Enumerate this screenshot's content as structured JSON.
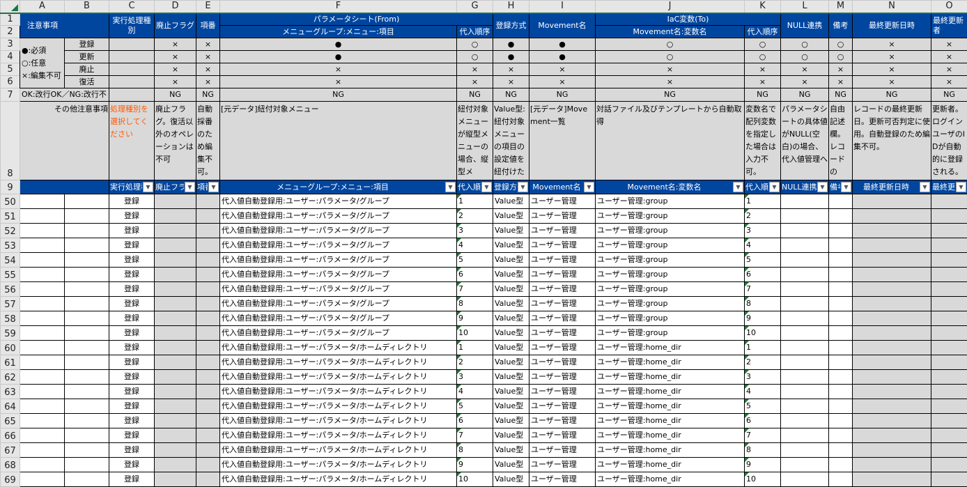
{
  "column_letters": [
    "A",
    "B",
    "C",
    "D",
    "E",
    "F",
    "G",
    "H",
    "I",
    "J",
    "K",
    "L",
    "M",
    "N",
    "O"
  ],
  "header": {
    "notes": "注意事項",
    "exec_type": "実行処理種別",
    "discard_flag": "廃止フラグ",
    "item_no": "項番",
    "param_sheet": "パラメータシート(From)",
    "menu_item": "メニューグループ:メニュー:項目",
    "assign_order": "代入順序",
    "reg_method": "登録方式",
    "movement": "Movement名",
    "iac": "IaC変数(To)",
    "movement_var": "Movement名:変数名",
    "assign_order2": "代入順序",
    "null_link": "NULL連携",
    "remarks": "備考",
    "last_updated": "最終更新日時",
    "last_updater": "最終更新者"
  },
  "legend": {
    "required": "●:必須",
    "optional": "○:任意",
    "readonly": "×:編集不可",
    "newline": "OK:改行OK／NG:改行不",
    "other": "その他注意事項"
  },
  "ops": [
    {
      "row": "3",
      "label": "登録",
      "symbols": [
        "×",
        "×",
        "●",
        "○",
        "●",
        "●",
        "○",
        "○",
        "○",
        "○",
        "×",
        "×"
      ]
    },
    {
      "row": "4",
      "label": "更新",
      "symbols": [
        "×",
        "×",
        "●",
        "○",
        "●",
        "●",
        "○",
        "○",
        "○",
        "○",
        "×",
        "×"
      ]
    },
    {
      "row": "5",
      "label": "廃止",
      "symbols": [
        "×",
        "×",
        "×",
        "×",
        "×",
        "×",
        "×",
        "×",
        "×",
        "×",
        "×",
        "×"
      ]
    },
    {
      "row": "6",
      "label": "復活",
      "symbols": [
        "×",
        "×",
        "×",
        "×",
        "×",
        "×",
        "×",
        "×",
        "×",
        "×",
        "×",
        "×"
      ]
    }
  ],
  "newline_row": [
    "NG",
    "NG",
    "NG",
    "NG",
    "NG",
    "NG",
    "NG",
    "NG",
    "NG",
    "NG",
    "NG",
    "NG"
  ],
  "descriptions": {
    "C": "処理種別を選択してください",
    "D": "廃止フラグ。復活以外のオペレーションは不可",
    "E": "自動採番のため編集不可。",
    "F": "[元データ]紐付対象メニュー",
    "G": "紐付対象メニューが縦型メニューの場合、縦型メ",
    "H": "Value型:紐付対象メニューの項目の設定値を紐付けた",
    "I": "[元データ]Movement一覧",
    "J": "対話ファイル及びテンプレートから自動取得",
    "K": "変数名で配列変数を指定した場合は入力不可。",
    "L": "パラメータシートの具体値がNULL(空白)の場合、代入値管理へ",
    "M": "自由記述欄。レコードの",
    "N": "レコードの最終更新日。更新可否判定に使用。自動登録のため編集不可。",
    "O": "更新者。ログインユーザのIDが自動的に登録される。編集不可。"
  },
  "filter_headers": [
    "実行処理種別",
    "廃止フラグ",
    "項番",
    "メニューグループ:メニュー:項目",
    "代入順序",
    "登録方式",
    "Movement名",
    "Movement名:変数名",
    "代入順序",
    "NULL連携",
    "備考",
    "最終更新日時",
    "最終更新者"
  ],
  "rows": [
    {
      "n": "50",
      "op": "登録",
      "item": "代入値自動登録用:ユーザー:パラメータ/グループ",
      "order": "1",
      "method": "Value型",
      "movement": "ユーザー管理",
      "var": "ユーザー管理:group",
      "order2": "1"
    },
    {
      "n": "51",
      "op": "登録",
      "item": "代入値自動登録用:ユーザー:パラメータ/グループ",
      "order": "2",
      "method": "Value型",
      "movement": "ユーザー管理",
      "var": "ユーザー管理:group",
      "order2": "2"
    },
    {
      "n": "52",
      "op": "登録",
      "item": "代入値自動登録用:ユーザー:パラメータ/グループ",
      "order": "3",
      "method": "Value型",
      "movement": "ユーザー管理",
      "var": "ユーザー管理:group",
      "order2": "3"
    },
    {
      "n": "53",
      "op": "登録",
      "item": "代入値自動登録用:ユーザー:パラメータ/グループ",
      "order": "4",
      "method": "Value型",
      "movement": "ユーザー管理",
      "var": "ユーザー管理:group",
      "order2": "4"
    },
    {
      "n": "54",
      "op": "登録",
      "item": "代入値自動登録用:ユーザー:パラメータ/グループ",
      "order": "5",
      "method": "Value型",
      "movement": "ユーザー管理",
      "var": "ユーザー管理:group",
      "order2": "5"
    },
    {
      "n": "55",
      "op": "登録",
      "item": "代入値自動登録用:ユーザー:パラメータ/グループ",
      "order": "6",
      "method": "Value型",
      "movement": "ユーザー管理",
      "var": "ユーザー管理:group",
      "order2": "6"
    },
    {
      "n": "56",
      "op": "登録",
      "item": "代入値自動登録用:ユーザー:パラメータ/グループ",
      "order": "7",
      "method": "Value型",
      "movement": "ユーザー管理",
      "var": "ユーザー管理:group",
      "order2": "7"
    },
    {
      "n": "57",
      "op": "登録",
      "item": "代入値自動登録用:ユーザー:パラメータ/グループ",
      "order": "8",
      "method": "Value型",
      "movement": "ユーザー管理",
      "var": "ユーザー管理:group",
      "order2": "8"
    },
    {
      "n": "58",
      "op": "登録",
      "item": "代入値自動登録用:ユーザー:パラメータ/グループ",
      "order": "9",
      "method": "Value型",
      "movement": "ユーザー管理",
      "var": "ユーザー管理:group",
      "order2": "9"
    },
    {
      "n": "59",
      "op": "登録",
      "item": "代入値自動登録用:ユーザー:パラメータ/グループ",
      "order": "10",
      "method": "Value型",
      "movement": "ユーザー管理",
      "var": "ユーザー管理:group",
      "order2": "10"
    },
    {
      "n": "60",
      "op": "登録",
      "item": "代入値自動登録用:ユーザー:パラメータ/ホームディレクトリ",
      "order": "1",
      "method": "Value型",
      "movement": "ユーザー管理",
      "var": "ユーザー管理:home_dir",
      "order2": "1"
    },
    {
      "n": "61",
      "op": "登録",
      "item": "代入値自動登録用:ユーザー:パラメータ/ホームディレクトリ",
      "order": "2",
      "method": "Value型",
      "movement": "ユーザー管理",
      "var": "ユーザー管理:home_dir",
      "order2": "2"
    },
    {
      "n": "62",
      "op": "登録",
      "item": "代入値自動登録用:ユーザー:パラメータ/ホームディレクトリ",
      "order": "3",
      "method": "Value型",
      "movement": "ユーザー管理",
      "var": "ユーザー管理:home_dir",
      "order2": "3"
    },
    {
      "n": "63",
      "op": "登録",
      "item": "代入値自動登録用:ユーザー:パラメータ/ホームディレクトリ",
      "order": "4",
      "method": "Value型",
      "movement": "ユーザー管理",
      "var": "ユーザー管理:home_dir",
      "order2": "4"
    },
    {
      "n": "64",
      "op": "登録",
      "item": "代入値自動登録用:ユーザー:パラメータ/ホームディレクトリ",
      "order": "5",
      "method": "Value型",
      "movement": "ユーザー管理",
      "var": "ユーザー管理:home_dir",
      "order2": "5"
    },
    {
      "n": "65",
      "op": "登録",
      "item": "代入値自動登録用:ユーザー:パラメータ/ホームディレクトリ",
      "order": "6",
      "method": "Value型",
      "movement": "ユーザー管理",
      "var": "ユーザー管理:home_dir",
      "order2": "6"
    },
    {
      "n": "66",
      "op": "登録",
      "item": "代入値自動登録用:ユーザー:パラメータ/ホームディレクトリ",
      "order": "7",
      "method": "Value型",
      "movement": "ユーザー管理",
      "var": "ユーザー管理:home_dir",
      "order2": "7"
    },
    {
      "n": "67",
      "op": "登録",
      "item": "代入値自動登録用:ユーザー:パラメータ/ホームディレクトリ",
      "order": "8",
      "method": "Value型",
      "movement": "ユーザー管理",
      "var": "ユーザー管理:home_dir",
      "order2": "8"
    },
    {
      "n": "68",
      "op": "登録",
      "item": "代入値自動登録用:ユーザー:パラメータ/ホームディレクトリ",
      "order": "9",
      "method": "Value型",
      "movement": "ユーザー管理",
      "var": "ユーザー管理:home_dir",
      "order2": "9"
    },
    {
      "n": "69",
      "op": "登録",
      "item": "代入値自動登録用:ユーザー:パラメータ/ホームディレクトリ",
      "order": "10",
      "method": "Value型",
      "movement": "ユーザー管理",
      "var": "ユーザー管理:home_dir",
      "order2": "10"
    }
  ],
  "colors": {
    "header_blue": "#00469f",
    "locked_gray": "#d9d9d9",
    "note_orange": "#ff5a00"
  }
}
